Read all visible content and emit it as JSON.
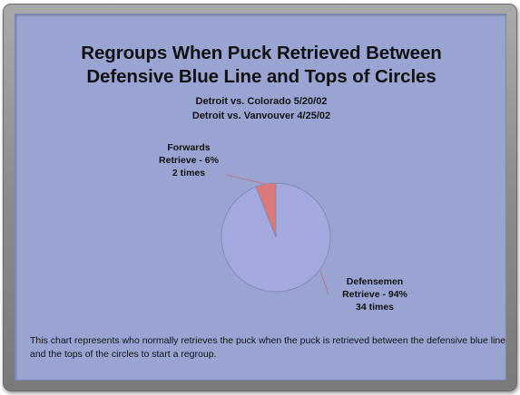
{
  "chart_data": {
    "type": "pie",
    "title_lines": [
      "Regroups When Puck Retrieved Between",
      "Defensive Blue Line and Tops of Circles"
    ],
    "subtitle_lines": [
      "Detroit vs. Colorado 5/20/02",
      "Detroit vs. Vanvouver 4/25/02"
    ],
    "slices": [
      {
        "value": 6,
        "color": "#d9797a",
        "label_lines": [
          "Forwards",
          "Retrieve - 6%",
          "2 times"
        ]
      },
      {
        "value": 94,
        "color": "#a4a9dd",
        "label_lines": [
          "Defensemen",
          "Retrieve - 94%",
          "34 times"
        ]
      }
    ]
  },
  "caption": "This chart represents who normally retrieves the puck when the puck is retrieved between the defensive blue line and the tops of the circles to start a regroup.",
  "colors": {
    "panel_background": "#99a4d2",
    "frame": "#8b8b8b",
    "leader_line": "#c07070"
  }
}
